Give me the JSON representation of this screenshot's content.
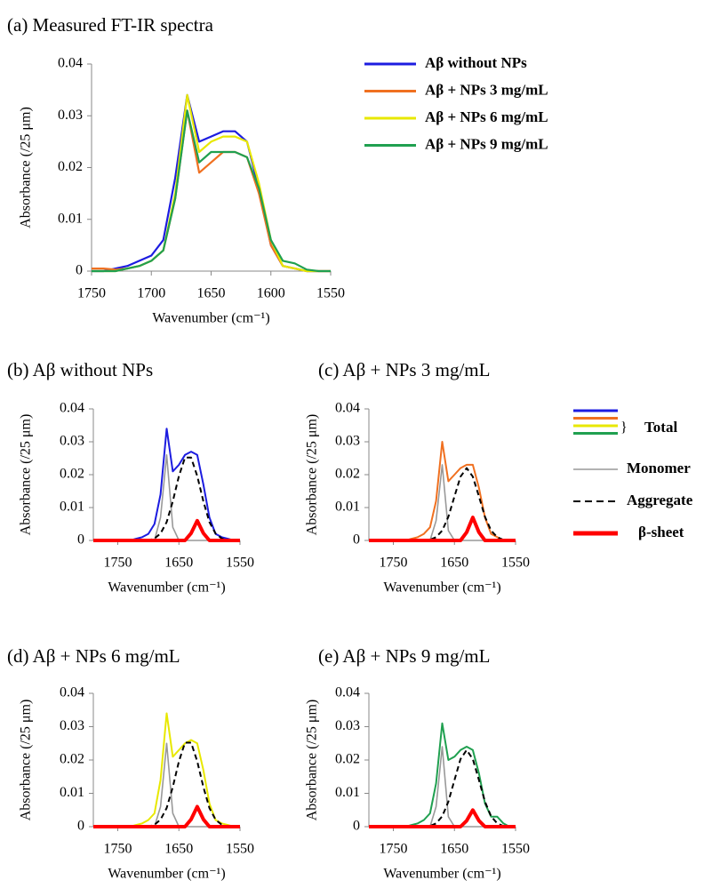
{
  "chart_data": [
    {
      "type": "line",
      "title": "(a) Measured FT-IR spectra",
      "x_label": "Wavenumber (cm⁻¹)",
      "y_label": "Absorbance (/25 μm)",
      "x": [
        1750,
        1740,
        1730,
        1720,
        1710,
        1700,
        1690,
        1680,
        1670,
        1660,
        1650,
        1640,
        1630,
        1620,
        1610,
        1600,
        1590,
        1580,
        1570,
        1560,
        1550
      ],
      "xlim": [
        1750,
        1550
      ],
      "xticks": [
        1750,
        1700,
        1650,
        1600,
        1550
      ],
      "ylim": [
        0,
        0.04
      ],
      "yticks": [
        0,
        0.01,
        0.02,
        0.03,
        0.04
      ],
      "series": [
        {
          "name": "Aβ without  NPs",
          "color": "#1c1ce0",
          "values": [
            0,
            0,
            0.0005,
            0.001,
            0.002,
            0.003,
            0.006,
            0.018,
            0.034,
            0.025,
            0.026,
            0.027,
            0.027,
            0.025,
            0.016,
            0.005,
            0.001,
            0.0005,
            0,
            0,
            0
          ]
        },
        {
          "name": "Aβ + NPs 3 mg/mL",
          "color": "#f07020",
          "values": [
            0.0005,
            0.0005,
            0.0003,
            0.0005,
            0.001,
            0.002,
            0.004,
            0.014,
            0.031,
            0.019,
            0.021,
            0.023,
            0.023,
            0.022,
            0.015,
            0.005,
            0.001,
            0.0005,
            0,
            0,
            0
          ]
        },
        {
          "name": "Aβ + NPs 6 mg/mL",
          "color": "#e8e800",
          "values": [
            0,
            0,
            0,
            0.0005,
            0.001,
            0.002,
            0.004,
            0.015,
            0.034,
            0.023,
            0.025,
            0.026,
            0.026,
            0.025,
            0.017,
            0.006,
            0.001,
            0.0005,
            0,
            0,
            0
          ]
        },
        {
          "name": "Aβ + NPs 9 mg/mL",
          "color": "#20a050",
          "values": [
            0,
            0,
            0,
            0.0005,
            0.001,
            0.002,
            0.004,
            0.014,
            0.031,
            0.021,
            0.023,
            0.023,
            0.023,
            0.022,
            0.016,
            0.006,
            0.002,
            0.0015,
            0.0003,
            0,
            0
          ]
        }
      ]
    },
    {
      "type": "line",
      "title": "(b) Aβ without NPs",
      "x_label": "Wavenumber (cm⁻¹)",
      "y_label": "Absorbance (/25 μm)",
      "x": [
        1790,
        1780,
        1770,
        1760,
        1750,
        1740,
        1730,
        1720,
        1710,
        1700,
        1690,
        1680,
        1670,
        1660,
        1650,
        1640,
        1630,
        1620,
        1610,
        1600,
        1590,
        1580,
        1570,
        1560,
        1550
      ],
      "xlim": [
        1790,
        1550
      ],
      "xticks": [
        1750,
        1650,
        1550
      ],
      "ylim": [
        0,
        0.04
      ],
      "yticks": [
        0,
        0.01,
        0.02,
        0.03,
        0.04
      ],
      "series": [
        {
          "name": "Total",
          "color": "#1c1ce0",
          "values": [
            0,
            0,
            0,
            0,
            0,
            0,
            0,
            0.0005,
            0.001,
            0.002,
            0.005,
            0.014,
            0.034,
            0.021,
            0.023,
            0.026,
            0.027,
            0.026,
            0.017,
            0.007,
            0.002,
            0.001,
            0.0005,
            0,
            0
          ]
        },
        {
          "name": "Monomer",
          "color": "#999999",
          "values": [
            0,
            0,
            0,
            0,
            0,
            0,
            0,
            0,
            0,
            0,
            0,
            0.007,
            0.026,
            0.004,
            0,
            0,
            0,
            0,
            0,
            0,
            0,
            0,
            0,
            0,
            0
          ]
        },
        {
          "name": "Aggregate",
          "color": "#000000",
          "line_style": "dashed",
          "values": [
            0,
            0,
            0,
            0,
            0,
            0,
            0,
            0,
            0,
            0,
            0.0006,
            0.0021,
            0.0056,
            0.0119,
            0.0196,
            0.0252,
            0.0252,
            0.0196,
            0.0119,
            0.0056,
            0.0021,
            0.0006,
            0,
            0,
            0
          ]
        },
        {
          "name": "β-sheet",
          "color": "#ff0000",
          "values": [
            0,
            0,
            0,
            0,
            0,
            0,
            0,
            0,
            0,
            0,
            0,
            0,
            0,
            0,
            0,
            0,
            0.0022,
            0.006,
            0.0022,
            0,
            0,
            0,
            0,
            0,
            0
          ]
        }
      ]
    },
    {
      "type": "line",
      "title": "(c) Aβ + NPs 3 mg/mL",
      "x_label": "Wavenumber (cm⁻¹)",
      "y_label": "Absorbance (/25 μm)",
      "x": [
        1790,
        1780,
        1770,
        1760,
        1750,
        1740,
        1730,
        1720,
        1710,
        1700,
        1690,
        1680,
        1670,
        1660,
        1650,
        1640,
        1630,
        1620,
        1610,
        1600,
        1590,
        1580,
        1570,
        1560,
        1550
      ],
      "xlim": [
        1790,
        1550
      ],
      "xticks": [
        1750,
        1650,
        1550
      ],
      "ylim": [
        0,
        0.04
      ],
      "yticks": [
        0,
        0.01,
        0.02,
        0.03,
        0.04
      ],
      "series": [
        {
          "name": "Total",
          "color": "#f07020",
          "values": [
            0,
            0,
            0,
            0,
            0,
            0,
            0,
            0.0005,
            0.001,
            0.002,
            0.004,
            0.012,
            0.03,
            0.018,
            0.02,
            0.022,
            0.023,
            0.023,
            0.016,
            0.007,
            0.002,
            0.001,
            0,
            0,
            0
          ]
        },
        {
          "name": "Monomer",
          "color": "#999999",
          "values": [
            0,
            0,
            0,
            0,
            0,
            0,
            0,
            0,
            0,
            0,
            0,
            0.006,
            0.023,
            0.003,
            0,
            0,
            0,
            0,
            0,
            0,
            0,
            0,
            0,
            0,
            0
          ]
        },
        {
          "name": "Aggregate",
          "color": "#000000",
          "line_style": "dashed",
          "values": [
            0,
            0,
            0,
            0,
            0,
            0,
            0,
            0,
            0,
            0,
            0.0002,
            0.001,
            0.003,
            0.0072,
            0.0134,
            0.0194,
            0.022,
            0.0194,
            0.0134,
            0.0072,
            0.003,
            0.001,
            0.0002,
            0,
            0
          ]
        },
        {
          "name": "β-sheet",
          "color": "#ff0000",
          "values": [
            0,
            0,
            0,
            0,
            0,
            0,
            0,
            0,
            0,
            0,
            0,
            0,
            0,
            0,
            0,
            0,
            0.0025,
            0.007,
            0.0025,
            0,
            0,
            0,
            0,
            0,
            0
          ]
        }
      ]
    },
    {
      "type": "line",
      "title": "(d) Aβ + NPs 6 mg/mL",
      "x_label": "Wavenumber (cm⁻¹)",
      "y_label": "Absorbance (/25 μm)",
      "x": [
        1790,
        1780,
        1770,
        1760,
        1750,
        1740,
        1730,
        1720,
        1710,
        1700,
        1690,
        1680,
        1670,
        1660,
        1650,
        1640,
        1630,
        1620,
        1610,
        1600,
        1590,
        1580,
        1570,
        1560,
        1550
      ],
      "xlim": [
        1790,
        1550
      ],
      "xticks": [
        1750,
        1650,
        1550
      ],
      "ylim": [
        0,
        0.04
      ],
      "yticks": [
        0,
        0.01,
        0.02,
        0.03,
        0.04
      ],
      "series": [
        {
          "name": "Total",
          "color": "#e8e800",
          "values": [
            0,
            0,
            0,
            0,
            0,
            0,
            0,
            0.0005,
            0.001,
            0.002,
            0.004,
            0.014,
            0.034,
            0.021,
            0.023,
            0.025,
            0.026,
            0.025,
            0.017,
            0.007,
            0.002,
            0.001,
            0.0005,
            0,
            0
          ]
        },
        {
          "name": "Monomer",
          "color": "#999999",
          "values": [
            0,
            0,
            0,
            0,
            0,
            0,
            0,
            0,
            0,
            0,
            0,
            0.006,
            0.025,
            0.004,
            0,
            0,
            0,
            0,
            0,
            0,
            0,
            0,
            0,
            0,
            0
          ]
        },
        {
          "name": "Aggregate",
          "color": "#000000",
          "line_style": "dashed",
          "values": [
            0,
            0,
            0,
            0,
            0,
            0,
            0,
            0,
            0,
            0,
            0.0006,
            0.0021,
            0.0056,
            0.0119,
            0.0196,
            0.0252,
            0.0252,
            0.0196,
            0.0119,
            0.0056,
            0.0021,
            0.0006,
            0,
            0,
            0
          ]
        },
        {
          "name": "β-sheet",
          "color": "#ff0000",
          "values": [
            0,
            0,
            0,
            0,
            0,
            0,
            0,
            0,
            0,
            0,
            0,
            0,
            0,
            0,
            0,
            0,
            0.0022,
            0.006,
            0.0022,
            0,
            0,
            0,
            0,
            0,
            0
          ]
        }
      ]
    },
    {
      "type": "line",
      "title": "(e) Aβ + NPs 9 mg/mL",
      "x_label": "Wavenumber (cm⁻¹)",
      "y_label": "Absorbance (/25 μm)",
      "x": [
        1790,
        1780,
        1770,
        1760,
        1750,
        1740,
        1730,
        1720,
        1710,
        1700,
        1690,
        1680,
        1670,
        1660,
        1650,
        1640,
        1630,
        1620,
        1610,
        1600,
        1590,
        1580,
        1570,
        1560,
        1550
      ],
      "xlim": [
        1790,
        1550
      ],
      "xticks": [
        1750,
        1650,
        1550
      ],
      "ylim": [
        0,
        0.04
      ],
      "yticks": [
        0,
        0.01,
        0.02,
        0.03,
        0.04
      ],
      "series": [
        {
          "name": "Total",
          "color": "#20a050",
          "values": [
            0,
            0,
            0,
            0,
            0,
            0,
            0,
            0.0005,
            0.001,
            0.002,
            0.004,
            0.013,
            0.031,
            0.02,
            0.021,
            0.023,
            0.024,
            0.023,
            0.016,
            0.007,
            0.003,
            0.003,
            0.001,
            0,
            0
          ]
        },
        {
          "name": "Monomer",
          "color": "#999999",
          "values": [
            0,
            0,
            0,
            0,
            0,
            0,
            0,
            0,
            0,
            0,
            0,
            0.006,
            0.024,
            0.003,
            0,
            0,
            0,
            0,
            0,
            0,
            0,
            0,
            0,
            0,
            0
          ]
        },
        {
          "name": "Aggregate",
          "color": "#000000",
          "line_style": "dashed",
          "values": [
            0,
            0,
            0,
            0,
            0,
            0,
            0,
            0,
            0,
            0,
            0.0002,
            0.001,
            0.0031,
            0.0075,
            0.014,
            0.0203,
            0.023,
            0.0203,
            0.014,
            0.0075,
            0.0031,
            0.001,
            0.0002,
            0,
            0
          ]
        },
        {
          "name": "β-sheet",
          "color": "#ff0000",
          "values": [
            0,
            0,
            0,
            0,
            0,
            0,
            0,
            0,
            0,
            0,
            0,
            0,
            0,
            0,
            0,
            0,
            0.0018,
            0.005,
            0.0018,
            0,
            0,
            0,
            0,
            0,
            0
          ]
        }
      ]
    }
  ]
}
